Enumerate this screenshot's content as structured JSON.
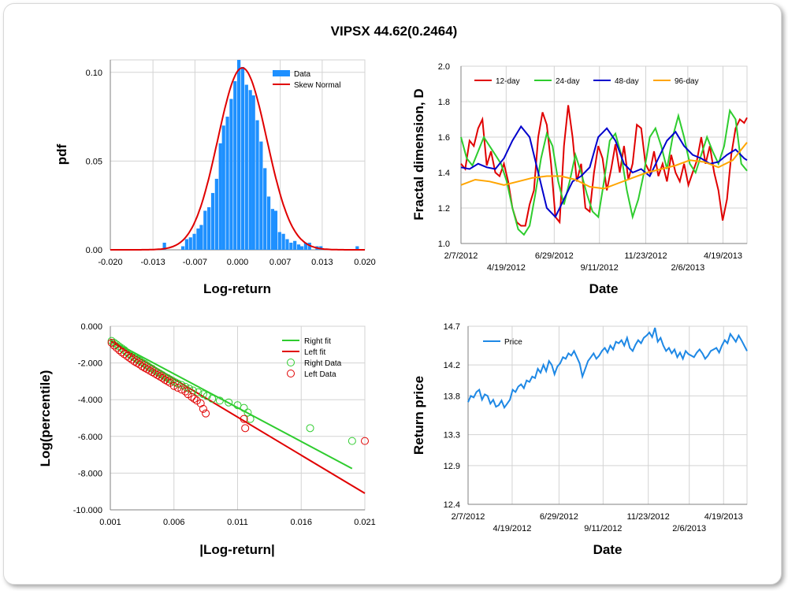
{
  "title": "VIPSX 44.62(0.2464)",
  "colors": {
    "grid": "#d3d3d3",
    "axis": "#808080",
    "bar": "#1e90ff",
    "red": "#e00000",
    "green": "#2ecc2e",
    "blue": "#0000cc",
    "orange": "#ffa500",
    "price": "#1e88e5"
  },
  "chart_data": [
    {
      "id": "histogram",
      "type": "bar",
      "xlabel": "Log-return",
      "ylabel": "pdf",
      "xlim": [
        -0.02,
        0.02
      ],
      "ylim": [
        0,
        0.107
      ],
      "xticks": [
        "-0.020",
        "-0.013",
        "-0.007",
        "0.000",
        "0.007",
        "0.013",
        "0.020"
      ],
      "yticks": [
        {
          "v": 0,
          "t": "0.00"
        },
        {
          "v": 0.05,
          "t": "0.05"
        },
        {
          "v": 0.1,
          "t": "0.10"
        }
      ],
      "legend": [
        "Data",
        "Skew Normal"
      ],
      "bin_centers": [
        -0.0115,
        -0.0086,
        -0.008,
        -0.0074,
        -0.0068,
        -0.0062,
        -0.0057,
        -0.0051,
        -0.0045,
        -0.0039,
        -0.0033,
        -0.0027,
        -0.0022,
        -0.0016,
        -0.001,
        -0.0004,
        0.0002,
        0.0008,
        0.0014,
        0.002,
        0.0025,
        0.0031,
        0.0037,
        0.0043,
        0.0049,
        0.0055,
        0.006,
        0.0066,
        0.0072,
        0.0078,
        0.0084,
        0.009,
        0.0096,
        0.0101,
        0.0107,
        0.0113,
        0.0125,
        0.0131,
        0.0188
      ],
      "values": [
        0.004,
        0.002,
        0.006,
        0.007,
        0.009,
        0.012,
        0.014,
        0.022,
        0.024,
        0.032,
        0.04,
        0.06,
        0.07,
        0.075,
        0.085,
        0.095,
        0.107,
        0.103,
        0.093,
        0.09,
        0.087,
        0.073,
        0.061,
        0.046,
        0.03,
        0.023,
        0.022,
        0.01,
        0.009,
        0.006,
        0.004,
        0.005,
        0.003,
        0.002,
        0.004,
        0.004,
        0.002,
        0.002,
        0.002
      ],
      "fit": {
        "name": "Skew Normal",
        "location": -0.0003,
        "scale": 0.004,
        "peak": 0.1025,
        "skew": 0.35
      }
    },
    {
      "id": "fractal",
      "type": "line",
      "xlabel": "Date",
      "ylabel": "Fractal dimension, D",
      "ylim": [
        1.0,
        2.0
      ],
      "xlim": [
        0,
        100
      ],
      "yticks": [
        {
          "v": 1.0,
          "t": "1.0"
        },
        {
          "v": 1.2,
          "t": "1.2"
        },
        {
          "v": 1.4,
          "t": "1.4"
        },
        {
          "v": 1.6,
          "t": "1.6"
        },
        {
          "v": 1.8,
          "t": "1.8"
        },
        {
          "v": 2.0,
          "t": "2.0"
        }
      ],
      "xticks_top": [
        {
          "v": 0,
          "t": "2/7/2012"
        },
        {
          "v": 32.6,
          "t": "6/29/2012"
        },
        {
          "v": 64.6,
          "t": "11/23/2012"
        },
        {
          "v": 91.6,
          "t": "4/19/2013"
        }
      ],
      "xticks_bottom": [
        {
          "v": 15.8,
          "t": "4/19/2012"
        },
        {
          "v": 48.4,
          "t": "9/11/2012"
        },
        {
          "v": 79.3,
          "t": "2/6/2013"
        }
      ],
      "series": [
        {
          "name": "12-day",
          "color": "#e00000",
          "x": [
            0,
            1.5,
            3,
            4.5,
            6,
            7.5,
            9,
            10.5,
            12,
            13.5,
            15,
            16.5,
            18,
            19.5,
            21,
            22.5,
            24,
            25.5,
            27,
            28.5,
            30,
            31.5,
            33,
            34.5,
            36,
            37.5,
            39,
            40.5,
            42,
            43.5,
            45,
            46.5,
            48,
            49.5,
            51,
            52.5,
            54,
            55.5,
            57,
            58.5,
            60,
            61.5,
            63,
            64.5,
            66,
            67.5,
            69,
            70.5,
            72,
            73.5,
            75,
            76.5,
            78,
            79.5,
            81,
            82.5,
            84,
            85.5,
            87,
            88.5,
            90,
            91.5,
            93,
            94.5,
            96,
            97.5,
            99,
            100
          ],
          "y": [
            1.45,
            1.42,
            1.58,
            1.55,
            1.65,
            1.7,
            1.44,
            1.52,
            1.4,
            1.38,
            1.45,
            1.35,
            1.2,
            1.12,
            1.1,
            1.1,
            1.22,
            1.3,
            1.6,
            1.74,
            1.67,
            1.45,
            1.15,
            1.12,
            1.55,
            1.78,
            1.6,
            1.35,
            1.45,
            1.2,
            1.18,
            1.4,
            1.55,
            1.48,
            1.3,
            1.42,
            1.56,
            1.4,
            1.55,
            1.36,
            1.45,
            1.67,
            1.65,
            1.45,
            1.4,
            1.52,
            1.38,
            1.45,
            1.35,
            1.5,
            1.4,
            1.35,
            1.45,
            1.33,
            1.4,
            1.47,
            1.6,
            1.45,
            1.55,
            1.4,
            1.3,
            1.13,
            1.25,
            1.5,
            1.65,
            1.7,
            1.68,
            1.71
          ]
        },
        {
          "name": "24-day",
          "color": "#2ecc2e",
          "x": [
            0,
            2,
            4,
            6,
            8,
            10,
            12,
            14,
            16,
            18,
            20,
            22,
            24,
            26,
            28,
            30,
            32,
            34,
            36,
            38,
            40,
            42,
            44,
            46,
            48,
            50,
            52,
            54,
            56,
            58,
            60,
            62,
            64,
            66,
            68,
            70,
            72,
            74,
            76,
            78,
            80,
            82,
            84,
            86,
            88,
            90,
            92,
            94,
            96,
            98,
            100
          ],
          "y": [
            1.6,
            1.48,
            1.44,
            1.52,
            1.6,
            1.55,
            1.5,
            1.45,
            1.35,
            1.2,
            1.08,
            1.05,
            1.1,
            1.28,
            1.48,
            1.62,
            1.55,
            1.35,
            1.22,
            1.35,
            1.5,
            1.4,
            1.28,
            1.18,
            1.15,
            1.35,
            1.58,
            1.62,
            1.5,
            1.3,
            1.15,
            1.25,
            1.4,
            1.6,
            1.65,
            1.55,
            1.42,
            1.6,
            1.72,
            1.6,
            1.45,
            1.4,
            1.5,
            1.6,
            1.52,
            1.45,
            1.55,
            1.75,
            1.7,
            1.45,
            1.41
          ]
        },
        {
          "name": "48-day",
          "color": "#0000cc",
          "x": [
            0,
            3,
            6,
            9,
            12,
            15,
            18,
            21,
            24,
            27,
            30,
            33,
            36,
            39,
            42,
            45,
            48,
            51,
            54,
            57,
            60,
            63,
            66,
            69,
            72,
            75,
            78,
            81,
            84,
            87,
            90,
            93,
            96,
            99,
            100
          ],
          "y": [
            1.43,
            1.42,
            1.45,
            1.43,
            1.42,
            1.48,
            1.58,
            1.66,
            1.6,
            1.4,
            1.2,
            1.15,
            1.25,
            1.35,
            1.38,
            1.43,
            1.6,
            1.65,
            1.58,
            1.45,
            1.4,
            1.42,
            1.38,
            1.48,
            1.58,
            1.63,
            1.55,
            1.5,
            1.48,
            1.45,
            1.46,
            1.5,
            1.53,
            1.48,
            1.47
          ]
        },
        {
          "name": "96-day",
          "color": "#ffa500",
          "x": [
            0,
            5,
            10,
            15,
            20,
            25,
            30,
            35,
            40,
            45,
            50,
            55,
            60,
            65,
            70,
            75,
            80,
            85,
            90,
            95,
            100
          ],
          "y": [
            1.33,
            1.36,
            1.35,
            1.33,
            1.35,
            1.37,
            1.38,
            1.38,
            1.36,
            1.32,
            1.31,
            1.34,
            1.37,
            1.4,
            1.42,
            1.44,
            1.47,
            1.46,
            1.43,
            1.47,
            1.57
          ]
        }
      ]
    },
    {
      "id": "percentile",
      "type": "scatter",
      "xlabel": "|Log-return|",
      "ylabel": "Log(percentile)",
      "xlim": [
        0.001,
        0.021
      ],
      "ylim": [
        -10,
        0
      ],
      "xticks": [
        {
          "v": 0.001,
          "t": "0.001"
        },
        {
          "v": 0.006,
          "t": "0.006"
        },
        {
          "v": 0.011,
          "t": "0.011"
        },
        {
          "v": 0.016,
          "t": "0.016"
        },
        {
          "v": 0.021,
          "t": "0.021"
        }
      ],
      "yticks": [
        {
          "v": 0,
          "t": "0.000"
        },
        {
          "v": -2,
          "t": "-2.000"
        },
        {
          "v": -4,
          "t": "-4.000"
        },
        {
          "v": -6,
          "t": "-6.000"
        },
        {
          "v": -8,
          "t": "-8.000"
        },
        {
          "v": -10,
          "t": "-10.000"
        }
      ],
      "legend": [
        "Right fit",
        "Left fit",
        "Right Data",
        "Left Data"
      ],
      "right_fit": {
        "x": [
          0.001,
          0.02
        ],
        "y": [
          -0.75,
          -7.75
        ]
      },
      "left_fit": {
        "x": [
          0.001,
          0.021
        ],
        "y": [
          -0.8,
          -9.1
        ]
      },
      "right_data": {
        "x": [
          0.0011,
          0.0013,
          0.0015,
          0.0017,
          0.0019,
          0.0021,
          0.0023,
          0.0025,
          0.0027,
          0.0029,
          0.0031,
          0.0033,
          0.0035,
          0.0037,
          0.0039,
          0.0041,
          0.0043,
          0.0045,
          0.0047,
          0.0049,
          0.0051,
          0.0053,
          0.0055,
          0.0057,
          0.0059,
          0.0061,
          0.0063,
          0.0066,
          0.0069,
          0.0072,
          0.0075,
          0.0079,
          0.0083,
          0.0086,
          0.009,
          0.0096,
          0.0103,
          0.011,
          0.0115,
          0.0118,
          0.012,
          0.0167,
          0.02
        ],
        "y": [
          -0.8,
          -0.9,
          -1.0,
          -1.1,
          -1.2,
          -1.3,
          -1.42,
          -1.52,
          -1.62,
          -1.7,
          -1.8,
          -1.88,
          -1.98,
          -2.05,
          -2.15,
          -2.25,
          -2.32,
          -2.42,
          -2.5,
          -2.58,
          -2.66,
          -2.75,
          -2.82,
          -2.9,
          -2.98,
          -3.05,
          -3.12,
          -3.2,
          -3.3,
          -3.4,
          -3.5,
          -3.6,
          -3.7,
          -3.8,
          -3.95,
          -4.05,
          -4.15,
          -4.3,
          -4.45,
          -4.7,
          -5.05,
          -5.55,
          -6.25
        ]
      },
      "left_data": {
        "x": [
          0.0011,
          0.0013,
          0.0015,
          0.0017,
          0.0019,
          0.0021,
          0.0023,
          0.0025,
          0.0027,
          0.0029,
          0.0031,
          0.0033,
          0.0035,
          0.0037,
          0.0039,
          0.0041,
          0.0043,
          0.0045,
          0.0047,
          0.0049,
          0.0051,
          0.0053,
          0.0055,
          0.0057,
          0.006,
          0.0063,
          0.0066,
          0.0069,
          0.0071,
          0.0074,
          0.0076,
          0.0078,
          0.0081,
          0.0083,
          0.0085,
          0.0115,
          0.0116,
          0.021
        ],
        "y": [
          -0.9,
          -1.05,
          -1.18,
          -1.3,
          -1.42,
          -1.52,
          -1.62,
          -1.72,
          -1.82,
          -1.92,
          -2.0,
          -2.08,
          -2.18,
          -2.26,
          -2.34,
          -2.42,
          -2.5,
          -2.58,
          -2.66,
          -2.74,
          -2.82,
          -2.92,
          -3.0,
          -3.08,
          -3.25,
          -3.35,
          -3.45,
          -3.55,
          -3.7,
          -3.85,
          -3.95,
          -4.05,
          -4.2,
          -4.5,
          -4.75,
          -5.05,
          -5.55,
          -6.25
        ]
      }
    },
    {
      "id": "price",
      "type": "line",
      "xlabel": "Date",
      "ylabel": "Return price",
      "ylim": [
        12.4,
        14.7
      ],
      "xlim": [
        0,
        100
      ],
      "yticks": [
        {
          "v": 12.4,
          "t": "12.4"
        },
        {
          "v": 12.9,
          "t": "12.9"
        },
        {
          "v": 13.3,
          "t": "13.3"
        },
        {
          "v": 13.8,
          "t": "13.8"
        },
        {
          "v": 14.2,
          "t": "14.2"
        },
        {
          "v": 14.7,
          "t": "14.7"
        }
      ],
      "xticks_top": [
        {
          "v": 0,
          "t": "2/7/2012"
        },
        {
          "v": 32.6,
          "t": "6/29/2012"
        },
        {
          "v": 64.6,
          "t": "11/23/2012"
        },
        {
          "v": 91.6,
          "t": "4/19/2013"
        }
      ],
      "xticks_bottom": [
        {
          "v": 15.8,
          "t": "4/19/2012"
        },
        {
          "v": 48.4,
          "t": "9/11/2012"
        },
        {
          "v": 79.3,
          "t": "2/6/2013"
        }
      ],
      "legend": [
        "Price"
      ],
      "series": [
        {
          "name": "Price",
          "color": "#1e88e5",
          "x": [
            0,
            1,
            2,
            3,
            4,
            5,
            6,
            7,
            8,
            9,
            10,
            11,
            12,
            13,
            14,
            15,
            16,
            17,
            18,
            19,
            20,
            21,
            22,
            23,
            24,
            25,
            26,
            27,
            28,
            29,
            30,
            31,
            32,
            33,
            34,
            35,
            36,
            37,
            38,
            39,
            40,
            41,
            42,
            43,
            44,
            45,
            46,
            47,
            48,
            49,
            50,
            51,
            52,
            53,
            54,
            55,
            56,
            57,
            58,
            59,
            60,
            61,
            62,
            63,
            64,
            65,
            66,
            67,
            68,
            69,
            70,
            71,
            72,
            73,
            74,
            75,
            76,
            77,
            78,
            79,
            80,
            81,
            82,
            83,
            84,
            85,
            86,
            87,
            88,
            89,
            90,
            91,
            92,
            93,
            94,
            95,
            96,
            97,
            98,
            99,
            100
          ],
          "y": [
            13.72,
            13.8,
            13.78,
            13.85,
            13.88,
            13.75,
            13.82,
            13.8,
            13.7,
            13.75,
            13.66,
            13.68,
            13.74,
            13.65,
            13.7,
            13.75,
            13.88,
            13.85,
            13.92,
            13.95,
            13.9,
            14.0,
            13.98,
            14.05,
            14.03,
            14.15,
            14.1,
            14.2,
            14.12,
            14.25,
            14.2,
            14.08,
            14.18,
            14.22,
            14.3,
            14.28,
            14.35,
            14.32,
            14.38,
            14.3,
            14.22,
            14.05,
            14.15,
            14.25,
            14.3,
            14.35,
            14.28,
            14.32,
            14.38,
            14.42,
            14.36,
            14.45,
            14.4,
            14.5,
            14.48,
            14.52,
            14.45,
            14.55,
            14.42,
            14.38,
            14.46,
            14.52,
            14.48,
            14.55,
            14.58,
            14.62,
            14.56,
            14.68,
            14.5,
            14.55,
            14.45,
            14.38,
            14.42,
            14.35,
            14.4,
            14.3,
            14.36,
            14.28,
            14.38,
            14.34,
            14.32,
            14.3,
            14.36,
            14.4,
            14.35,
            14.28,
            14.32,
            14.38,
            14.4,
            14.42,
            14.36,
            14.45,
            14.52,
            14.48,
            14.6,
            14.55,
            14.5,
            14.58,
            14.52,
            14.45,
            14.38
          ]
        }
      ]
    }
  ]
}
